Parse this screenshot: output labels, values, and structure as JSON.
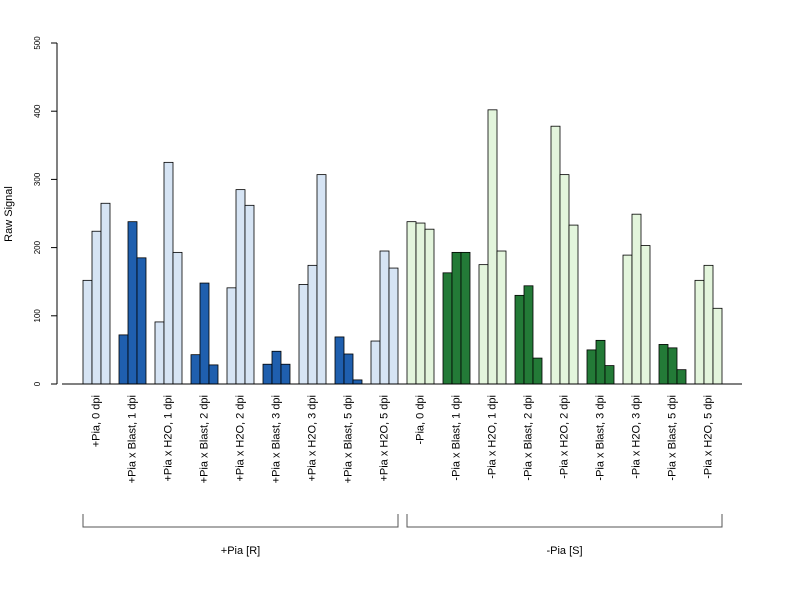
{
  "chart_data": {
    "type": "bar",
    "ylabel": "Raw Signal",
    "ylim": [
      0,
      500
    ],
    "yticks": [
      0,
      100,
      200,
      300,
      400,
      500
    ],
    "grid": false,
    "legend": "none",
    "colors": {
      "light_blue": "#d6e4f4",
      "dark_blue": "#1f5fae",
      "light_green": "#e3f5dc",
      "dark_green": "#237a37",
      "border": "#000000"
    },
    "categories": [
      "+Pia, 0 dpi",
      "+Pia x Blast, 1 dpi",
      "+Pia x H2O, 1 dpi",
      "+Pia x Blast, 2 dpi",
      "+Pia x H2O, 2 dpi",
      "+Pia x Blast, 3 dpi",
      "+Pia x H2O, 3 dpi",
      "+Pia x Blast, 5 dpi",
      "+Pia x H2O, 5 dpi",
      "-Pia, 0 dpi",
      "-Pia x Blast, 1 dpi",
      "-Pia x H2O, 1 dpi",
      "-Pia x Blast, 2 dpi",
      "-Pia x H2O, 2 dpi",
      "-Pia x Blast, 3 dpi",
      "-Pia x H2O, 3 dpi",
      "-Pia x Blast, 5 dpi",
      "-Pia x H2O, 5 dpi"
    ],
    "replicates": [
      [
        152,
        224,
        265
      ],
      [
        72,
        238,
        185
      ],
      [
        91,
        325,
        193
      ],
      [
        43,
        148,
        28
      ],
      [
        141,
        285,
        262
      ],
      [
        29,
        48,
        29
      ],
      [
        146,
        174,
        307
      ],
      [
        69,
        44,
        6
      ],
      [
        63,
        195,
        170
      ],
      [
        238,
        236,
        227
      ],
      [
        163,
        193,
        193
      ],
      [
        175,
        402,
        195
      ],
      [
        130,
        144,
        38
      ],
      [
        378,
        307,
        233
      ],
      [
        50,
        64,
        27
      ],
      [
        189,
        249,
        203
      ],
      [
        58,
        53,
        21
      ],
      [
        152,
        174,
        111
      ]
    ],
    "fill": [
      "light_blue",
      "dark_blue",
      "light_blue",
      "dark_blue",
      "light_blue",
      "dark_blue",
      "light_blue",
      "dark_blue",
      "light_blue",
      "light_green",
      "dark_green",
      "light_green",
      "dark_green",
      "light_green",
      "dark_green",
      "light_green",
      "dark_green",
      "light_green"
    ],
    "groups": [
      {
        "label": "+Pia [R]",
        "first": 0,
        "last": 8
      },
      {
        "label": "-Pia [S]",
        "first": 9,
        "last": 17
      }
    ]
  }
}
